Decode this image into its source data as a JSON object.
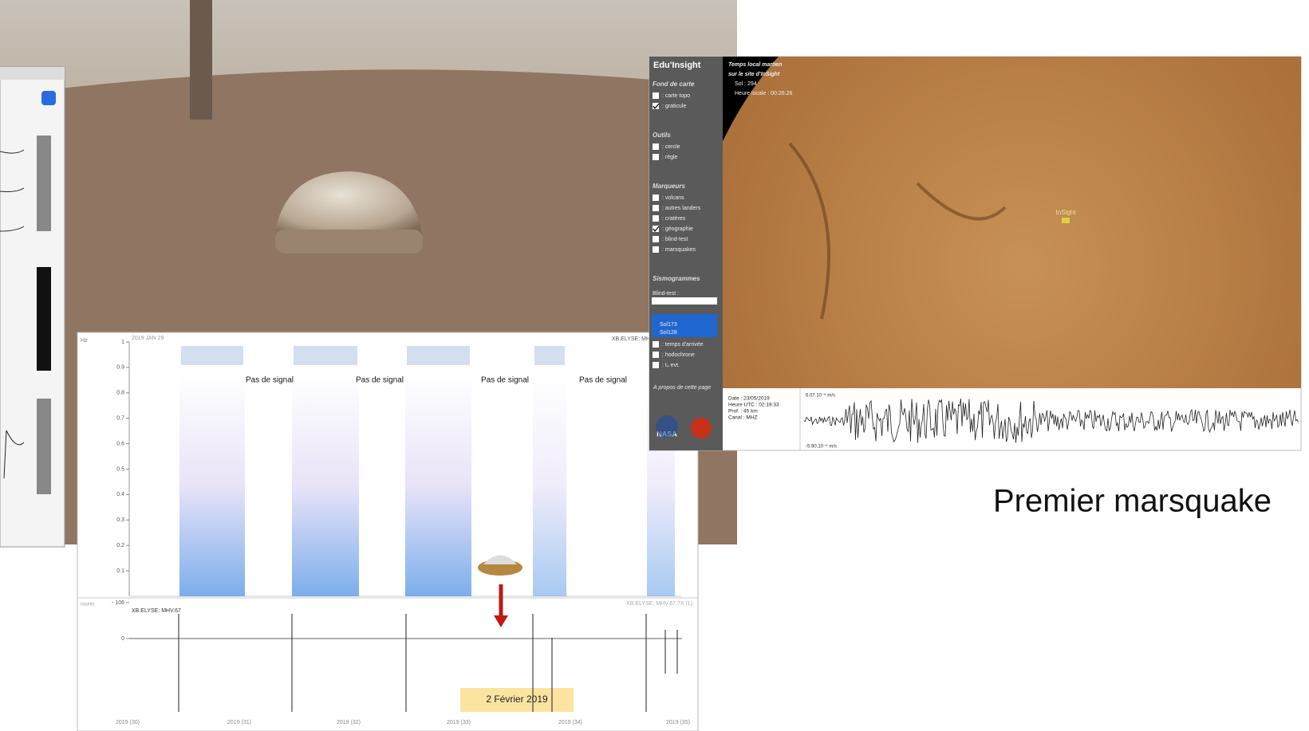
{
  "spectrogram": {
    "date": "2019 JAN 29",
    "station": "XB.ELYSE: MH",
    "y_axis_label": "Hz",
    "yticks": [
      0.1,
      0.2,
      0.3,
      0.4,
      0.5,
      0.6,
      0.7,
      0.8,
      0.9,
      1
    ],
    "gaps": [
      "Pas de signal",
      "Pas de signal",
      "Pas de signal",
      "Pas de signal"
    ]
  },
  "seismogram": {
    "y_axis_label": "counts",
    "channel": "XB.ELYSE: MHV.67",
    "channel_right": "XB.ELYSE: MHV.67.?X (1)",
    "yticks": [
      {
        "value": 0,
        "label": "0"
      },
      {
        "value": -106,
        "label": "- 106"
      }
    ],
    "xticks": [
      "2019 (30)",
      "2019 (31)",
      "2019 (32)",
      "2019 (33)",
      "2019 (34)",
      "2019 (35)"
    ],
    "date_box": "2 Février 2019"
  },
  "edu_insight": {
    "app_title": "Edu'Insight",
    "sections": [
      {
        "title": "Fond de carte",
        "items": [
          {
            "label": ": carte topo",
            "checked": false
          },
          {
            "label": ": graticule",
            "checked": true
          }
        ]
      },
      {
        "title": "Outils",
        "items": [
          {
            "label": ": cercle",
            "checked": false
          },
          {
            "label": ": règle",
            "checked": false
          }
        ]
      },
      {
        "title": "Marqueurs",
        "items": [
          {
            "label": ": volcans",
            "checked": false
          },
          {
            "label": ": autres landers",
            "checked": false
          },
          {
            "label": ": cratères",
            "checked": false
          },
          {
            "label": ": géographie",
            "checked": true
          },
          {
            "label": ": blind-test",
            "checked": false
          },
          {
            "label": ": marsquakes",
            "checked": false
          }
        ]
      },
      {
        "title": "Sismogrammes",
        "select_label": "Blind-test :",
        "options": [
          "Sol173",
          "Sol128"
        ],
        "items": [
          {
            "label": ": temps d'arrivée",
            "checked": false
          },
          {
            "label": ": hodochrone",
            "checked": false
          },
          {
            "label": ": t₀ evt.",
            "checked": false
          }
        ]
      }
    ],
    "about": "A propos de cette page",
    "local_time": [
      "Temps local martien",
      "sur le site d'InSight",
      "Sol : 294",
      "Heure locale : 00:26:26"
    ],
    "lander_label": "InSight",
    "event_info": [
      "Date : 23/05/2019",
      "Heure UTC : 02:19:33",
      "Prof. : 45 km",
      "Canal : MHZ"
    ],
    "wave_max": "6.07.10⁻⁶ m/s",
    "wave_min": "-5.90.10⁻⁶ m/s"
  },
  "caption": "Premier marsquake"
}
